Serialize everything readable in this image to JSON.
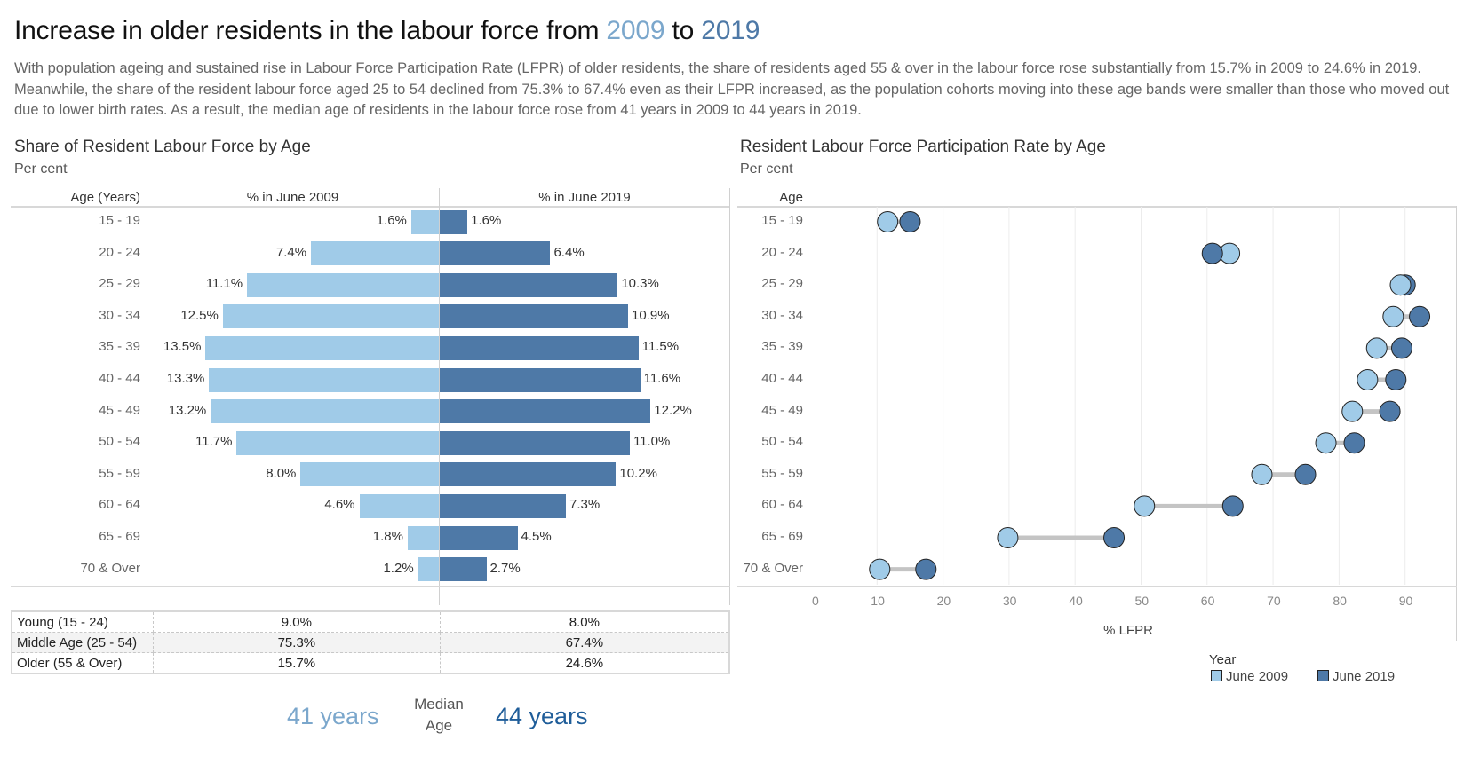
{
  "title": {
    "prefix": "Increase in older residents in the labour force from ",
    "year_start": "2009",
    "middle": " to ",
    "year_end": "2019"
  },
  "description": "With population ageing and sustained rise in Labour Force Participation Rate (LFPR) of older residents, the share of residents aged 55 & over in the labour force rose substantially from 15.7% in 2009 to 24.6% in 2019. Meanwhile, the share of the resident labour force aged 25 to 54 declined from 75.3% to 67.4% even as their LFPR increased, as the population cohorts moving into these age bands were smaller than those who moved out due to lower birth rates. As a result, the median age of residents in the labour force rose from 41 years in 2009 to 44 years in 2019.",
  "colors": {
    "june_2009": "#a0cbe8",
    "june_2019": "#4e79a7",
    "connector": "#c4c4c4"
  },
  "chart_data": [
    {
      "type": "bar",
      "title": "Share of Resident Labour Force by Age",
      "subtitle": "Per cent",
      "row_header": "Age (Years)",
      "categories": [
        "15 - 19",
        "20 - 24",
        "25 - 29",
        "30 - 34",
        "35 - 39",
        "40 - 44",
        "45 - 49",
        "50 - 54",
        "55 - 59",
        "60 - 64",
        "65 - 69",
        "70 & Over"
      ],
      "series": [
        {
          "name": "% in June 2009",
          "values": [
            1.6,
            7.4,
            11.1,
            12.5,
            13.5,
            13.3,
            13.2,
            11.7,
            8.0,
            4.6,
            1.8,
            1.2
          ],
          "labels": [
            "1.6%",
            "7.4%",
            "11.1%",
            "12.5%",
            "13.5%",
            "13.3%",
            "13.2%",
            "11.7%",
            "8.0%",
            "4.6%",
            "1.8%",
            "1.2%"
          ]
        },
        {
          "name": "% in June 2019",
          "values": [
            1.6,
            6.4,
            10.3,
            10.9,
            11.5,
            11.6,
            12.2,
            11.0,
            10.2,
            7.3,
            4.5,
            2.7
          ],
          "labels": [
            "1.6%",
            "6.4%",
            "10.3%",
            "10.9%",
            "11.5%",
            "11.6%",
            "12.2%",
            "11.0%",
            "10.2%",
            "7.3%",
            "4.5%",
            "2.7%"
          ]
        }
      ],
      "orientation": "horizontal-diverging"
    },
    {
      "type": "scatter",
      "subtype": "dumbbell",
      "title": "Resident Labour Force Participation Rate by Age",
      "subtitle": "Per cent",
      "row_header": "Age",
      "categories": [
        "15 - 19",
        "20 - 24",
        "25 - 29",
        "30 - 34",
        "35 - 39",
        "40 - 44",
        "45 - 49",
        "50 - 54",
        "55 - 59",
        "60 - 64",
        "65 - 69",
        "70 & Over"
      ],
      "series": [
        {
          "name": "June 2009",
          "values": [
            11.6,
            63.4,
            89.3,
            88.2,
            85.7,
            84.3,
            82.0,
            78.0,
            68.3,
            50.5,
            29.8,
            10.4
          ]
        },
        {
          "name": "June 2019",
          "values": [
            15.0,
            60.8,
            90.0,
            92.2,
            89.5,
            88.6,
            87.7,
            82.3,
            74.9,
            63.9,
            45.9,
            17.4
          ]
        }
      ],
      "xlabel": "% LFPR",
      "xlim": [
        0,
        97
      ],
      "xticks": [
        "0",
        "10",
        "20",
        "30",
        "40",
        "50",
        "60",
        "70",
        "80",
        "90"
      ],
      "grid": true,
      "legend": {
        "title": "Year",
        "position": "bottom-right",
        "items": [
          "June 2009",
          "June 2019"
        ]
      }
    }
  ],
  "summary_table": {
    "rows": [
      {
        "label": "Young (15 - 24)",
        "v2009": "9.0%",
        "v2019": "8.0%"
      },
      {
        "label": "Middle Age (25 - 54)",
        "v2009": "75.3%",
        "v2019": "67.4%"
      },
      {
        "label": "Older (55 & Over)",
        "v2009": "15.7%",
        "v2019": "24.6%"
      }
    ]
  },
  "median": {
    "label_line1": "Median",
    "label_line2": "Age",
    "v2009": "41 years",
    "v2019": "44 years"
  }
}
